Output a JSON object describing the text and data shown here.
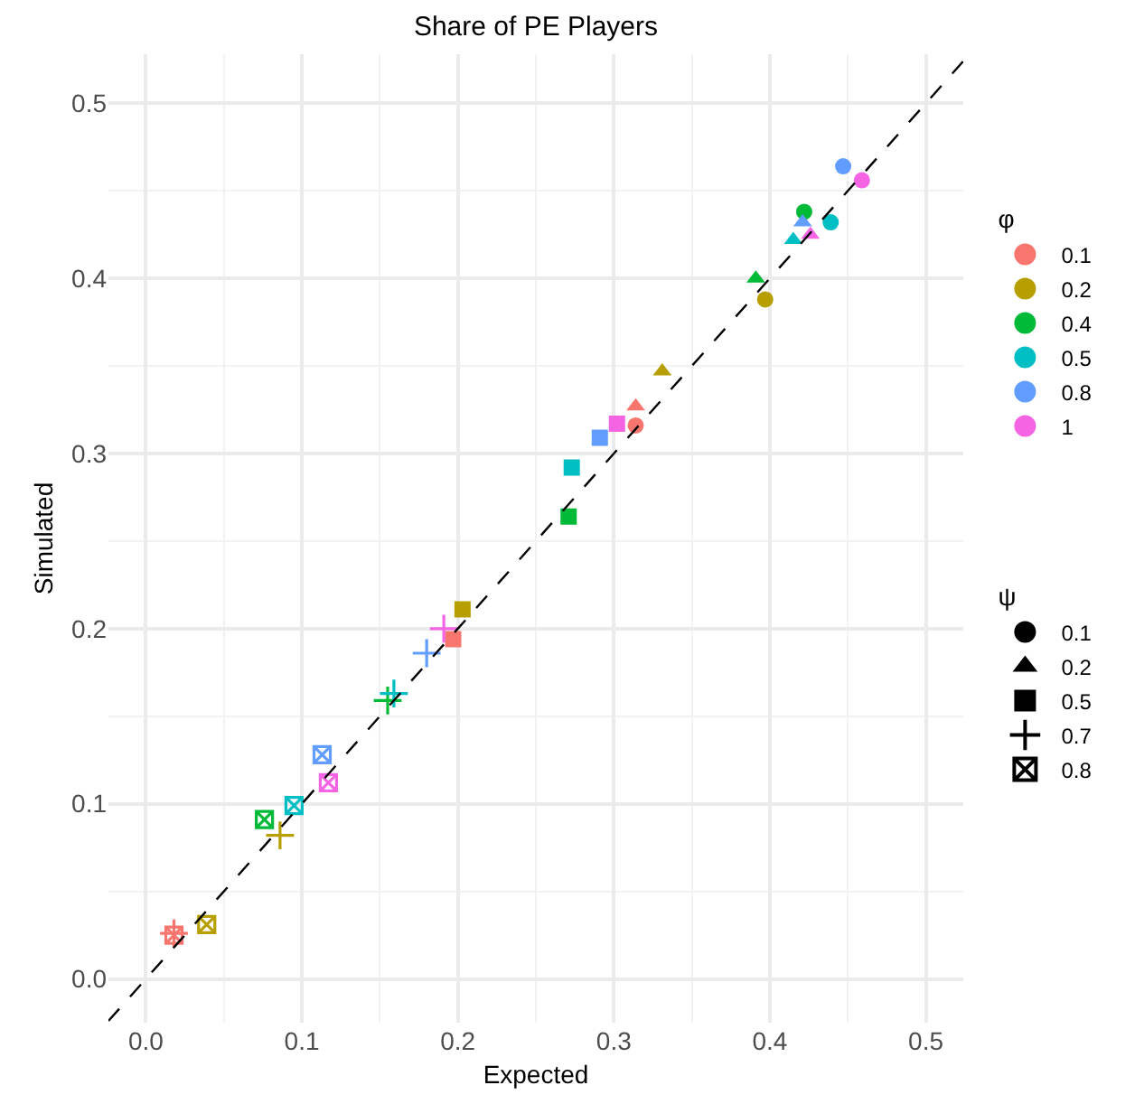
{
  "chart_data": {
    "type": "scatter",
    "title": "Share of PE Players",
    "xlabel": "Expected",
    "ylabel": "Simulated",
    "legend_title": "φ",
    "legend": "right",
    "grid": true,
    "xlim": [
      -0.024,
      0.524
    ],
    "ylim": [
      -0.025,
      0.528
    ],
    "xticks": [
      {
        "value": 0,
        "label": "0.0"
      },
      0.1,
      0.2,
      0.3,
      0.4,
      0.5
    ],
    "yticks": [
      {
        "value": 0,
        "label": "0.0"
      },
      0.1,
      0.2,
      0.3,
      0.4,
      0.5
    ],
    "annotations": [
      "ψ",
      "0.1",
      "0.2",
      "0.5",
      "0.7",
      "0.8"
    ],
    "series": [
      {
        "name": "0.1",
        "color": "#f8766d",
        "marker": "circle",
        "x": [
          0.314
        ],
        "values": [
          0.316
        ]
      },
      {
        "color": "#f8766d",
        "marker": "triangle",
        "x": [
          0.314
        ],
        "values": [
          0.327
        ]
      },
      {
        "color": "#f8766d",
        "marker": "square",
        "x": [
          0.197
        ],
        "values": [
          0.194
        ]
      },
      {
        "color": "#f8766d",
        "marker": "cross",
        "x": [
          0.018
        ],
        "values": [
          0.026
        ]
      },
      {
        "color": "#f8766d",
        "x": [
          0.018
        ],
        "values": [
          0.025
        ]
      },
      {
        "name": "0.2",
        "color": "#b79f00",
        "marker": "circle",
        "x": [
          0.397
        ],
        "values": [
          0.388
        ]
      },
      {
        "color": "#b79f00",
        "marker": "triangle",
        "x": [
          0.331
        ],
        "values": [
          0.347
        ]
      },
      {
        "color": "#b79f00",
        "marker": "square",
        "x": [
          0.203
        ],
        "values": [
          0.211
        ]
      },
      {
        "color": "#b79f00",
        "marker": "cross",
        "x": [
          0.086
        ],
        "values": [
          0.082
        ]
      },
      {
        "color": "#b79f00",
        "x": [
          0.039
        ],
        "values": [
          0.031
        ]
      },
      {
        "name": "0.4",
        "color": "#00ba38",
        "marker": "circle",
        "x": [
          0.422
        ],
        "values": [
          0.438
        ]
      },
      {
        "color": "#00ba38",
        "marker": "triangle",
        "x": [
          0.391
        ],
        "values": [
          0.4
        ]
      },
      {
        "color": "#00ba38",
        "marker": "square",
        "x": [
          0.271
        ],
        "values": [
          0.264
        ]
      },
      {
        "color": "#00ba38",
        "marker": "cross",
        "x": [
          0.155
        ],
        "values": [
          0.159
        ]
      },
      {
        "color": "#00ba38",
        "x": [
          0.076
        ],
        "values": [
          0.091
        ]
      },
      {
        "name": "0.5",
        "color": "#00bfc4",
        "marker": "circle",
        "x": [
          0.439
        ],
        "values": [
          0.432
        ]
      },
      {
        "color": "#00bfc4",
        "marker": "triangle",
        "x": [
          0.415
        ],
        "values": [
          0.422
        ]
      },
      {
        "color": "#00bfc4",
        "marker": "square",
        "x": [
          0.273
        ],
        "values": [
          0.292
        ]
      },
      {
        "color": "#00bfc4",
        "marker": "cross",
        "x": [
          0.159
        ],
        "values": [
          0.163
        ]
      },
      {
        "color": "#00bfc4",
        "x": [
          0.095
        ],
        "values": [
          0.099
        ]
      },
      {
        "name": "0.8",
        "color": "#619cff",
        "marker": "circle",
        "x": [
          0.447
        ],
        "values": [
          0.464
        ]
      },
      {
        "color": "#619cff",
        "marker": "triangle",
        "x": [
          0.421
        ],
        "values": [
          0.432
        ]
      },
      {
        "color": "#619cff",
        "marker": "square",
        "x": [
          0.291
        ],
        "values": [
          0.309
        ]
      },
      {
        "color": "#619cff",
        "marker": "cross",
        "x": [
          0.18
        ],
        "values": [
          0.186
        ]
      },
      {
        "color": "#619cff",
        "x": [
          0.113
        ],
        "values": [
          0.128
        ]
      },
      {
        "name": "1",
        "color": "#f564e3",
        "marker": "circle",
        "x": [
          0.459
        ],
        "values": [
          0.456
        ]
      },
      {
        "color": "#f564e3",
        "marker": "triangle",
        "x": [
          0.426
        ],
        "values": [
          0.425
        ]
      },
      {
        "color": "#f564e3",
        "marker": "square",
        "x": [
          0.302
        ],
        "values": [
          0.317
        ]
      },
      {
        "color": "#f564e3",
        "marker": "cross",
        "x": [
          0.191
        ],
        "values": [
          0.2
        ]
      },
      {
        "color": "#f564e3",
        "x": [
          0.117
        ],
        "values": [
          0.112
        ]
      },
      {
        "type": "line",
        "color": "#000000",
        "line_style": "dashed",
        "x": [
          -0.024,
          0.524
        ],
        "values": [
          -0.024,
          0.524
        ]
      }
    ]
  }
}
